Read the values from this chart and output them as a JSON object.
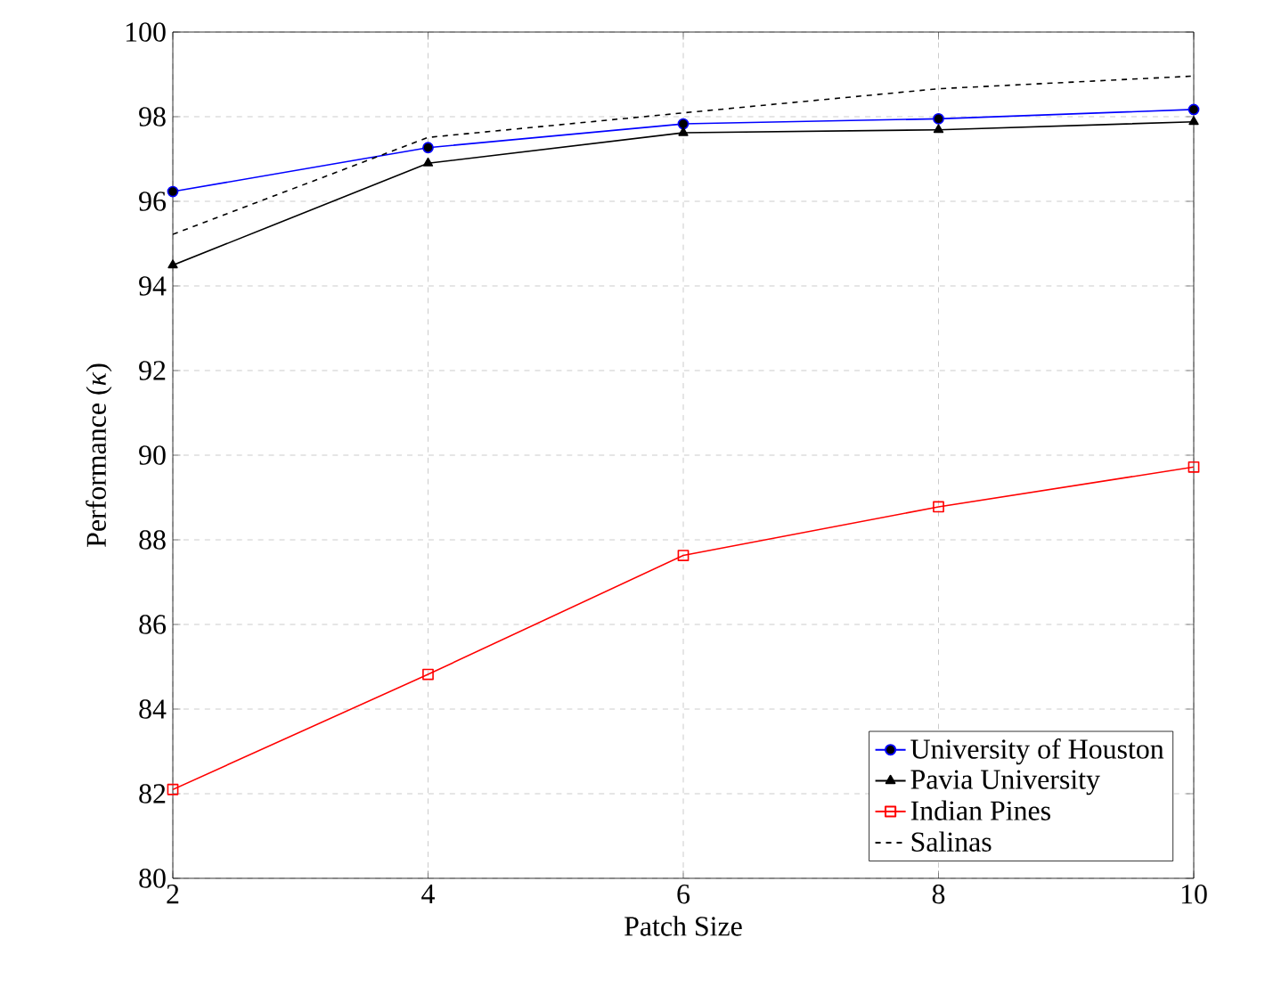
{
  "chart_data": {
    "type": "line",
    "xlabel": "Patch Size",
    "ylabel": "Performance (*κ*)",
    "x": [
      2,
      4,
      6,
      8,
      10
    ],
    "series": [
      {
        "name": "University of Houston",
        "color": "#0000ff",
        "marker": "circle",
        "line_style": "solid",
        "values": [
          96.23,
          97.27,
          97.83,
          97.95,
          98.17
        ]
      },
      {
        "name": "Pavia University",
        "color": "#000000",
        "marker": "triangle",
        "line_style": "solid",
        "values": [
          94.49,
          96.9,
          97.62,
          97.69,
          97.88
        ]
      },
      {
        "name": "Indian Pines",
        "color": "#ff0000",
        "marker": "square",
        "line_style": "solid",
        "values": [
          82.1,
          84.82,
          87.63,
          88.78,
          89.72
        ]
      },
      {
        "name": "Salinas",
        "color": "#000000",
        "marker": "none",
        "line_style": "dashed",
        "values": [
          95.22,
          97.51,
          98.09,
          98.66,
          98.96
        ]
      }
    ],
    "xlim": [
      2,
      10
    ],
    "xticks": [
      2,
      4,
      6,
      8,
      10
    ],
    "ylim": [
      80,
      100
    ],
    "yticks": [
      80,
      82,
      84,
      86,
      88,
      90,
      92,
      94,
      96,
      98,
      100
    ],
    "grid": true,
    "legend": "bottom right"
  }
}
